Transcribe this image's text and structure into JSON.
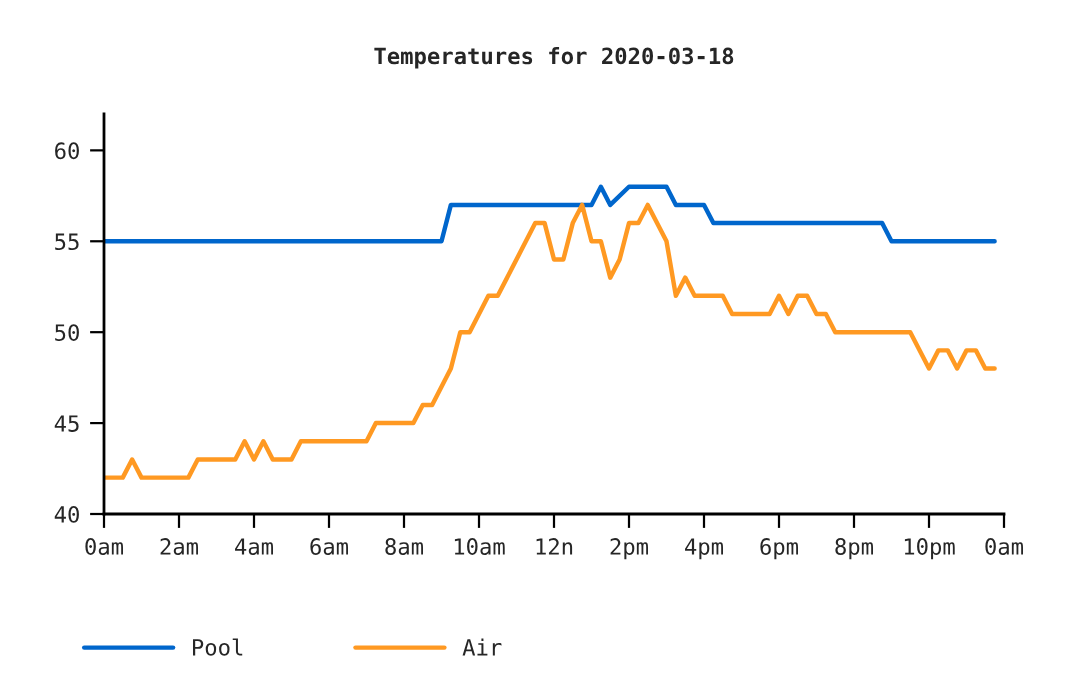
{
  "chart_data": {
    "type": "line",
    "title": "Temperatures for 2020-03-18",
    "xlim": [
      "2020-03-18T00:00",
      "2020-03-19T00:00"
    ],
    "ylim": [
      40,
      62
    ],
    "xticks": [
      {
        "value": "2020-03-18T00:00",
        "label": "0am"
      },
      {
        "value": "2020-03-18T02:00",
        "label": "2am"
      },
      {
        "value": "2020-03-18T04:00",
        "label": "4am"
      },
      {
        "value": "2020-03-18T06:00",
        "label": "6am"
      },
      {
        "value": "2020-03-18T08:00",
        "label": "8am"
      },
      {
        "value": "2020-03-18T10:00",
        "label": "10am"
      },
      {
        "value": "2020-03-18T12:00",
        "label": "12n"
      },
      {
        "value": "2020-03-18T14:00",
        "label": "2pm"
      },
      {
        "value": "2020-03-18T16:00",
        "label": "4pm"
      },
      {
        "value": "2020-03-18T18:00",
        "label": "6pm"
      },
      {
        "value": "2020-03-18T20:00",
        "label": "8pm"
      },
      {
        "value": "2020-03-18T22:00",
        "label": "10pm"
      },
      {
        "value": "2020-03-19T00:00",
        "label": "0am"
      }
    ],
    "yticks": [
      40,
      45,
      50,
      55,
      60
    ],
    "grid": false,
    "legend": "bottom",
    "marker": "none",
    "line_style": "solid",
    "series": [
      {
        "name": "Pool",
        "color": "#0066cc",
        "x": [
          "2020-03-18T00:00",
          "2020-03-18T09:00",
          "2020-03-18T09:15",
          "2020-03-18T13:00",
          "2020-03-18T13:15",
          "2020-03-18T13:30",
          "2020-03-18T14:00",
          "2020-03-18T15:00",
          "2020-03-18T15:15",
          "2020-03-18T16:00",
          "2020-03-18T16:15",
          "2020-03-18T20:45",
          "2020-03-18T21:00",
          "2020-03-18T23:45"
        ],
        "values": [
          55,
          55,
          57,
          57,
          58,
          57,
          58,
          58,
          57,
          57,
          56,
          56,
          55,
          55
        ]
      },
      {
        "name": "Air",
        "color": "#ff9922",
        "x": [
          "2020-03-18T00:00",
          "2020-03-18T00:30",
          "2020-03-18T00:45",
          "2020-03-18T01:00",
          "2020-03-18T02:15",
          "2020-03-18T02:30",
          "2020-03-18T03:30",
          "2020-03-18T03:45",
          "2020-03-18T04:00",
          "2020-03-18T04:15",
          "2020-03-18T04:30",
          "2020-03-18T05:00",
          "2020-03-18T05:15",
          "2020-03-18T07:00",
          "2020-03-18T07:15",
          "2020-03-18T08:15",
          "2020-03-18T08:30",
          "2020-03-18T08:45",
          "2020-03-18T09:15",
          "2020-03-18T09:30",
          "2020-03-18T09:45",
          "2020-03-18T10:15",
          "2020-03-18T10:30",
          "2020-03-18T11:30",
          "2020-03-18T11:45",
          "2020-03-18T12:00",
          "2020-03-18T12:15",
          "2020-03-18T12:30",
          "2020-03-18T12:45",
          "2020-03-18T13:00",
          "2020-03-18T13:15",
          "2020-03-18T13:30",
          "2020-03-18T13:45",
          "2020-03-18T14:00",
          "2020-03-18T14:15",
          "2020-03-18T14:30",
          "2020-03-18T15:00",
          "2020-03-18T15:15",
          "2020-03-18T15:30",
          "2020-03-18T15:45",
          "2020-03-18T16:30",
          "2020-03-18T16:45",
          "2020-03-18T17:45",
          "2020-03-18T18:00",
          "2020-03-18T18:15",
          "2020-03-18T18:30",
          "2020-03-18T18:45",
          "2020-03-18T19:00",
          "2020-03-18T19:15",
          "2020-03-18T19:30",
          "2020-03-18T21:30",
          "2020-03-18T22:00",
          "2020-03-18T22:15",
          "2020-03-18T22:30",
          "2020-03-18T22:45",
          "2020-03-18T23:00",
          "2020-03-18T23:15",
          "2020-03-18T23:30",
          "2020-03-18T23:45"
        ],
        "values": [
          42,
          42,
          43,
          42,
          42,
          43,
          43,
          44,
          43,
          44,
          43,
          43,
          44,
          44,
          45,
          45,
          46,
          46,
          48,
          50,
          50,
          52,
          52,
          56,
          56,
          54,
          54,
          56,
          57,
          55,
          55,
          53,
          54,
          56,
          56,
          57,
          55,
          52,
          53,
          52,
          52,
          51,
          51,
          52,
          51,
          52,
          52,
          51,
          51,
          50,
          50,
          48,
          49,
          49,
          48,
          49,
          49,
          48,
          48
        ]
      }
    ]
  }
}
